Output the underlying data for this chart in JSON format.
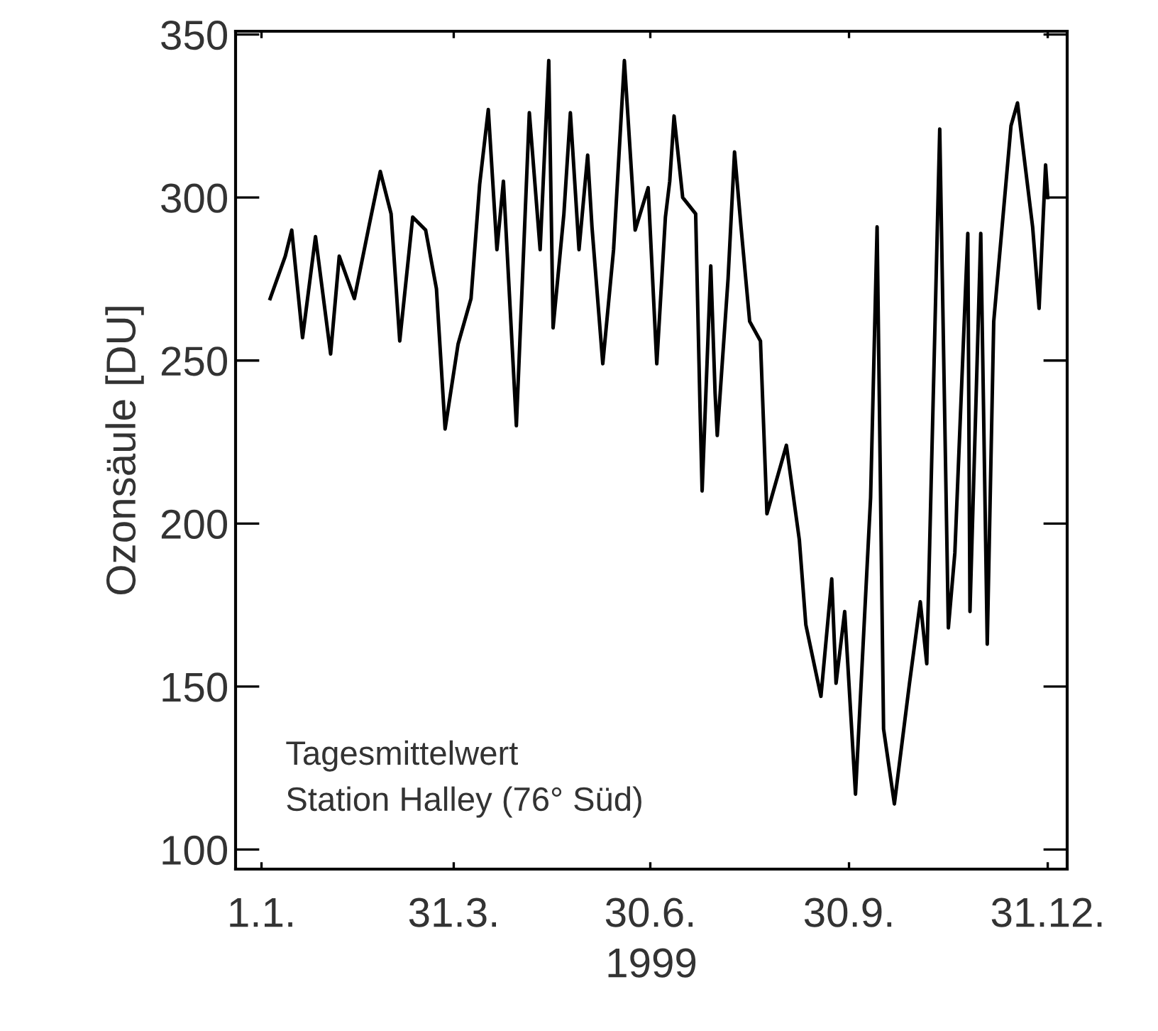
{
  "chart_data": {
    "type": "line",
    "xlabel": "1999",
    "ylabel": "Ozonsäule [DU]",
    "annotations": [
      "Tagesmittelwert",
      "Station Halley (76° Süd)"
    ],
    "x": [
      "1999-01-05",
      "1999-01-12",
      "1999-01-15",
      "1999-01-20",
      "1999-01-26",
      "1999-02-02",
      "1999-02-06",
      "1999-02-13",
      "1999-02-20",
      "1999-02-25",
      "1999-03-02",
      "1999-03-06",
      "1999-03-12",
      "1999-03-18",
      "1999-03-23",
      "1999-03-27",
      "1999-04-02",
      "1999-04-08",
      "1999-04-12",
      "1999-04-16",
      "1999-04-20",
      "1999-04-23",
      "1999-04-29",
      "1999-05-05",
      "1999-05-10",
      "1999-05-14",
      "1999-05-16",
      "1999-05-21",
      "1999-05-24",
      "1999-05-28",
      "1999-06-01",
      "1999-06-03",
      "1999-06-08",
      "1999-06-13",
      "1999-06-18",
      "1999-06-23",
      "1999-06-29",
      "1999-07-03",
      "1999-07-07",
      "1999-07-09",
      "1999-07-11",
      "1999-07-15",
      "1999-07-21",
      "1999-07-23",
      "1999-07-24",
      "1999-07-28",
      "1999-07-30",
      "1999-07-31",
      "1999-08-05",
      "1999-08-08",
      "1999-08-11",
      "1999-08-15",
      "1999-08-20",
      "1999-08-23",
      "1999-09-01",
      "1999-09-07",
      "1999-09-10",
      "1999-09-17",
      "1999-09-22",
      "1999-09-24",
      "1999-09-28",
      "1999-10-03",
      "1999-10-10",
      "1999-10-13",
      "1999-10-16",
      "1999-10-21",
      "1999-10-28",
      "1999-11-02",
      "1999-11-05",
      "1999-11-11",
      "1999-11-15",
      "1999-11-18",
      "1999-11-24",
      "1999-11-25",
      "1999-11-30",
      "1999-12-03",
      "1999-12-06",
      "1999-12-14",
      "1999-12-17",
      "1999-12-24",
      "1999-12-27",
      "1999-12-30",
      "1999-12-31"
    ],
    "series": [
      {
        "color": "#000000",
        "values": [
          269,
          282,
          290,
          257,
          288,
          252,
          282,
          269,
          292,
          308,
          295,
          256,
          294,
          290,
          272,
          229,
          255,
          269,
          304,
          327,
          284,
          305,
          230,
          326,
          284,
          342,
          260,
          295,
          326,
          284,
          313,
          291,
          249,
          284,
          342,
          290,
          303,
          249,
          294,
          305,
          325,
          300,
          295,
          236,
          210,
          279,
          240,
          227,
          275,
          314,
          291,
          262,
          256,
          203,
          224,
          195,
          169,
          147,
          183,
          151,
          173,
          117,
          208,
          291,
          137,
          114,
          151,
          176,
          157,
          321,
          168,
          191,
          289,
          173,
          289,
          163,
          262,
          322,
          329,
          291,
          266,
          310,
          300
        ]
      }
    ],
    "xlim": [
      "1998-12-20",
      "2000-01-09"
    ],
    "ylim": [
      94,
      351
    ],
    "xticks": [
      {
        "value": "1999-01-01",
        "label": "1.1."
      },
      {
        "value": "1999-03-31",
        "label": "31.3."
      },
      {
        "value": "1999-06-30",
        "label": "30.6."
      },
      {
        "value": "1999-09-30",
        "label": "30.9."
      },
      {
        "value": "1999-12-31",
        "label": "31.12."
      }
    ],
    "yticks": [
      100,
      150,
      200,
      250,
      300,
      350
    ],
    "grid": false,
    "legend": false,
    "marker": "none",
    "line_style": "solid"
  }
}
